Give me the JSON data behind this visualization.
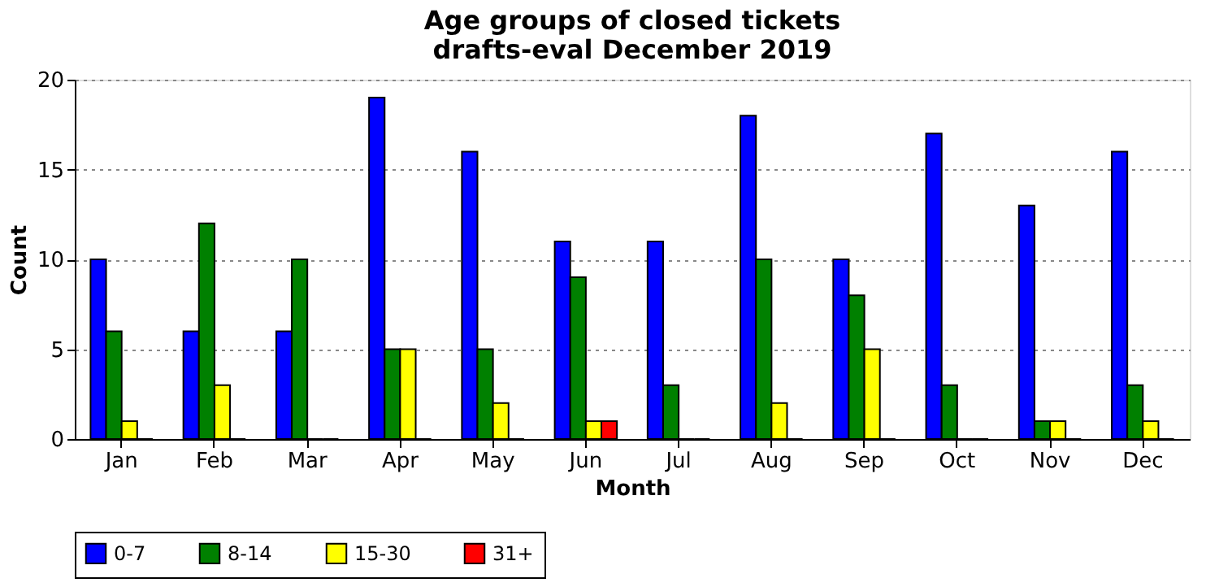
{
  "chart_data": {
    "type": "bar",
    "title": "Age groups of closed tickets",
    "subtitle": "drafts-eval December 2019",
    "xlabel": "Month",
    "ylabel": "Count",
    "categories": [
      "Jan",
      "Feb",
      "Mar",
      "Apr",
      "May",
      "Jun",
      "Jul",
      "Aug",
      "Sep",
      "Oct",
      "Nov",
      "Dec"
    ],
    "series": [
      {
        "name": "0-7",
        "color": "#0000ff",
        "values": [
          10,
          6,
          6,
          19,
          16,
          11,
          11,
          18,
          10,
          17,
          13,
          16
        ]
      },
      {
        "name": "8-14",
        "color": "#008000",
        "values": [
          6,
          12,
          10,
          5,
          5,
          9,
          3,
          10,
          8,
          3,
          1,
          3
        ]
      },
      {
        "name": "15-30",
        "color": "#ffff00",
        "values": [
          1,
          3,
          0,
          5,
          2,
          1,
          0,
          2,
          5,
          0,
          1,
          1
        ]
      },
      {
        "name": "31+",
        "color": "#ff0000",
        "values": [
          0,
          0,
          0,
          0,
          0,
          1,
          0,
          0,
          0,
          0,
          0,
          0
        ]
      }
    ],
    "ylim": [
      0,
      20
    ],
    "yticks": [
      0,
      5,
      10,
      15,
      20
    ],
    "grid": "y",
    "legend": "bottom"
  }
}
